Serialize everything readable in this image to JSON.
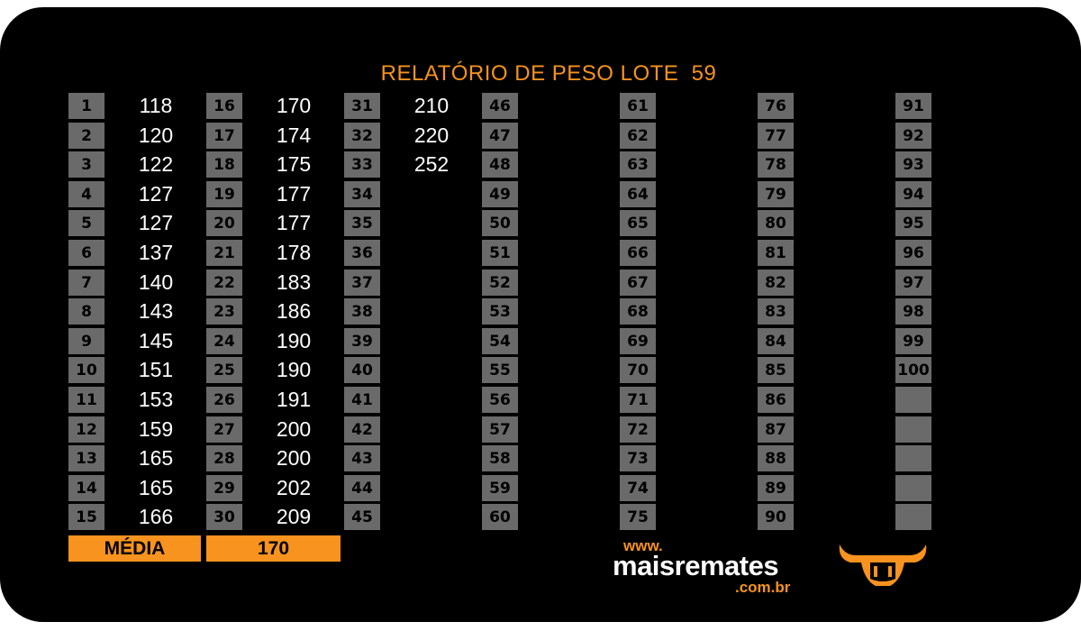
{
  "title": "RELATÓRIO DE PESO LOTE  59",
  "rows_per_column": 15,
  "weights": [
    118,
    120,
    122,
    127,
    127,
    137,
    140,
    143,
    145,
    151,
    153,
    159,
    165,
    165,
    166,
    170,
    174,
    175,
    177,
    177,
    178,
    183,
    186,
    190,
    190,
    191,
    200,
    200,
    202,
    209,
    210,
    220,
    252
  ],
  "numbers": [
    "1",
    "2",
    "3",
    "4",
    "5",
    "6",
    "7",
    "8",
    "9",
    "10",
    "11",
    "12",
    "13",
    "14",
    "15",
    "16",
    "17",
    "18",
    "19",
    "20",
    "21",
    "22",
    "23",
    "24",
    "25",
    "26",
    "27",
    "28",
    "29",
    "30",
    "31",
    "32",
    "33",
    "34",
    "35",
    "36",
    "37",
    "38",
    "39",
    "40",
    "41",
    "42",
    "43",
    "44",
    "45",
    "46",
    "47",
    "48",
    "49",
    "50",
    "51",
    "52",
    "53",
    "54",
    "55",
    "56",
    "57",
    "58",
    "59",
    "60",
    "61",
    "62",
    "63",
    "64",
    "65",
    "66",
    "67",
    "68",
    "69",
    "70",
    "71",
    "72",
    "73",
    "74",
    "75",
    "76",
    "77",
    "78",
    "79",
    "80",
    "81",
    "82",
    "83",
    "84",
    "85",
    "86",
    "87",
    "88",
    "89",
    "90",
    "91",
    "92",
    "93",
    "94",
    "95",
    "96",
    "97",
    "98",
    "99",
    "100"
  ],
  "media": {
    "label": "MÉDIA",
    "value": "170"
  },
  "logo": {
    "www": "www.",
    "name": "maisremates",
    "domain": ".com.br"
  },
  "colors": {
    "accent": "#f7931e",
    "background": "#000000",
    "cell": "#6a6a6a",
    "text": "#ffffff"
  },
  "icons": {
    "bull": "bull-head-icon"
  }
}
